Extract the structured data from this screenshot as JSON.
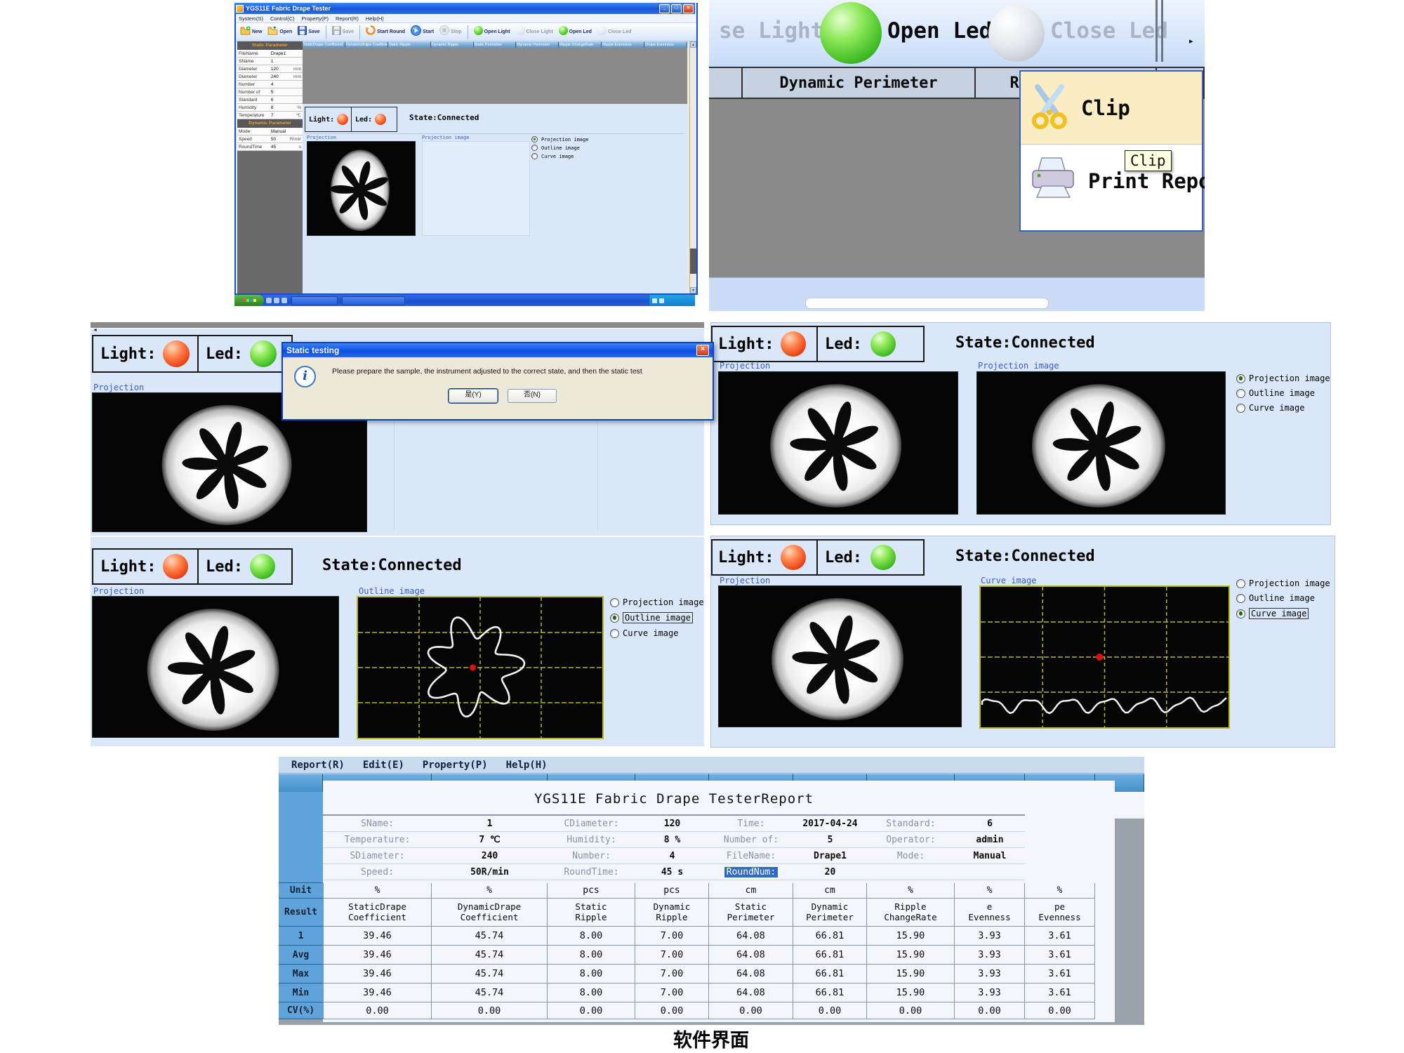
{
  "caption": "软件界面",
  "colors": {
    "accent_blue": "#0a50e0",
    "panel_bg": "#d9e7f8",
    "grid_header_blue": "#4d9bd5",
    "highlight_blue": "#316ac5",
    "dialog_bg": "#ece9d8",
    "led_green": "#35c025",
    "light_red": "#e8421c",
    "grid_yellow": "#b8b830"
  },
  "main_window": {
    "title": "YGS11E Fabric Drape Tester",
    "menu": [
      "System(S)",
      "Control(C)",
      "Property(P)",
      "Report(R)",
      "Help(H)"
    ],
    "toolbar": [
      {
        "label": "New",
        "icon": "new-file-icon",
        "enabled": true
      },
      {
        "label": "Open",
        "icon": "open-folder-icon",
        "enabled": true
      },
      {
        "label": "Save",
        "icon": "save-icon",
        "enabled": true
      },
      {
        "label": "Save",
        "icon": "save-icon",
        "enabled": false
      },
      {
        "label": "Start Round",
        "icon": "start-round-icon",
        "enabled": true
      },
      {
        "label": "Start",
        "icon": "start-icon",
        "enabled": true
      },
      {
        "label": "Stop",
        "icon": "stop-icon",
        "enabled": false
      },
      {
        "label": "Open Light",
        "icon": "green-sphere-icon",
        "enabled": true
      },
      {
        "label": "Close Light",
        "icon": "gray-sphere-icon",
        "enabled": false
      },
      {
        "label": "Open Led",
        "icon": "green-sphere-icon",
        "enabled": true
      },
      {
        "label": "Close Led",
        "icon": "gray-sphere-icon",
        "enabled": false
      }
    ],
    "grid_headers": [
      "StaticDrape Coefficient",
      "DynamicDrape Coefficient",
      "Static Ripple",
      "Dynamic Ripple",
      "Static Perimeter",
      "Dynamic Perimeter",
      "Ripple ChangeRate",
      "Ripple Evenness",
      "Drape Evenness"
    ],
    "params": {
      "section1": "Static Parameter",
      "rows1": [
        [
          "FileName",
          "Drape1",
          ""
        ],
        [
          "SName",
          "1",
          ""
        ],
        [
          "Diameter",
          "120",
          "mm"
        ],
        [
          "Diameter",
          "240",
          "mm"
        ],
        [
          "Number",
          "4",
          ""
        ],
        [
          "Number of",
          "5",
          ""
        ],
        [
          "Standard",
          "6",
          ""
        ],
        [
          "Humidity",
          "8",
          "%"
        ],
        [
          "Temperature",
          "7",
          "℃"
        ]
      ],
      "section2": "Dynamic Parameter",
      "rows2": [
        [
          "Mode",
          "Manual",
          ""
        ],
        [
          "Speed",
          "50",
          "R/min"
        ],
        [
          "RoundTime",
          "45",
          "s"
        ]
      ]
    },
    "status_panel": {
      "light_label": "Light:",
      "led_label": "Led:",
      "state_text": "State:Connected",
      "projection_label": "Projection",
      "projection_image_label": "Projection image",
      "radio_options": [
        "Projection image",
        "Outline image",
        "Curve image"
      ]
    }
  },
  "zoom_fragment": {
    "close_light_label": "se Light",
    "open_led_label": "Open Led",
    "close_led_label": "Close Led",
    "column_headers": [
      "Dynamic Perimeter",
      "Ripple Chang"
    ],
    "context_menu": [
      {
        "label": "Clip",
        "icon": "scissors-icon"
      },
      {
        "label": "Print Report",
        "icon": "printer-icon"
      }
    ],
    "tooltip": "Clip"
  },
  "dialog": {
    "title": "Static testing",
    "message": "Please prepare the sample, the instrument adjusted to the correct state, and then the static test",
    "yes_label": "是(Y)",
    "no_label": "否(N)"
  },
  "panels": {
    "light_label": "Light:",
    "led_label": "Led:",
    "state_text": "State:Connected",
    "projection_label": "Projection",
    "projection_image_label": "Projection image",
    "outline_image_label": "Outline image",
    "curve_image_label": "Curve image",
    "radio_options": [
      "Projection image",
      "Outline image",
      "Curve image"
    ]
  },
  "report": {
    "menu": [
      "Report(R)",
      "Edit(E)",
      "Property(P)",
      "Help(H)"
    ],
    "title": "YGS11E Fabric Drape TesterReport",
    "info_rows": [
      [
        {
          "l": "SName:",
          "v": "1"
        },
        {
          "l": "CDiameter:",
          "v": "120"
        },
        {
          "l": "Time:",
          "v": "2017-04-24"
        },
        {
          "l": "Standard:",
          "v": "6"
        }
      ],
      [
        {
          "l": "Temperature:",
          "v": "7 ℃"
        },
        {
          "l": "Humidity:",
          "v": "8 %"
        },
        {
          "l": "Number of:",
          "v": "5"
        },
        {
          "l": "Operator:",
          "v": "admin"
        }
      ],
      [
        {
          "l": "SDiameter:",
          "v": "240"
        },
        {
          "l": "Number:",
          "v": "4"
        },
        {
          "l": "FileName:",
          "v": "Drape1"
        },
        {
          "l": "Mode:",
          "v": "Manual"
        }
      ],
      [
        {
          "l": "Speed:",
          "v": "50R/min"
        },
        {
          "l": "RoundTime:",
          "v": "45 s"
        },
        {
          "l": "RoundNum:",
          "v": "20",
          "hl": true
        },
        {
          "l": "",
          "v": ""
        }
      ]
    ],
    "unit_label": "Unit",
    "units": [
      "%",
      "%",
      "pcs",
      "pcs",
      "cm",
      "cm",
      "%",
      "%",
      "%"
    ],
    "result_label": "Result",
    "result_headers": [
      "StaticDrape\nCoefficient",
      "DynamicDrape\nCoefficient",
      "Static\nRipple",
      "Dynamic\nRipple",
      "Static\nPerimeter",
      "Dynamic\nPerimeter",
      "Ripple\nChangeRate",
      "e\nEvenness",
      "pe\nEvenness"
    ],
    "rows": [
      {
        "label": "1",
        "values": [
          "39.46",
          "45.74",
          "8.00",
          "7.00",
          "64.08",
          "66.81",
          "15.90",
          "3.93",
          "3.61"
        ]
      },
      {
        "label": "Avg",
        "values": [
          "39.46",
          "45.74",
          "8.00",
          "7.00",
          "64.08",
          "66.81",
          "15.90",
          "3.93",
          "3.61"
        ]
      },
      {
        "label": "Max",
        "values": [
          "39.46",
          "45.74",
          "8.00",
          "7.00",
          "64.08",
          "66.81",
          "15.90",
          "3.93",
          "3.61"
        ]
      },
      {
        "label": "Min",
        "values": [
          "39.46",
          "45.74",
          "8.00",
          "7.00",
          "64.08",
          "66.81",
          "15.90",
          "3.93",
          "3.61"
        ]
      },
      {
        "label": "CV(%)",
        "values": [
          "0.00",
          "0.00",
          "0.00",
          "0.00",
          "0.00",
          "0.00",
          "0.00",
          "0.00",
          "0.00"
        ]
      }
    ]
  }
}
